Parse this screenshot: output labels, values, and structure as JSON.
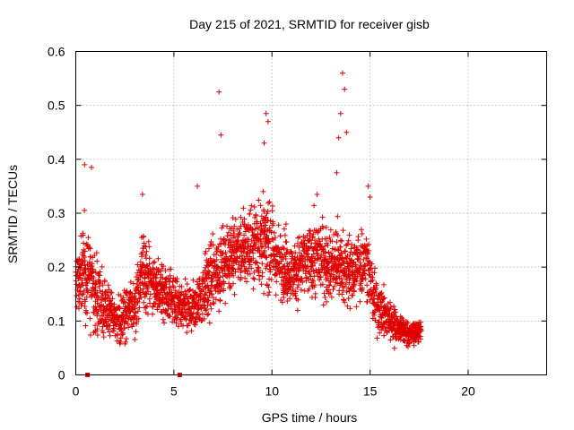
{
  "chart_data": {
    "type": "scatter",
    "title": "Day 215 of 2021, SRMTID for receiver gisb",
    "xlabel": "GPS time / hours",
    "ylabel": "SRMTID / TECUs",
    "xlim": [
      0,
      24
    ],
    "ylim": [
      0,
      0.6
    ],
    "xticks": [
      0,
      5,
      10,
      15,
      20
    ],
    "xtick_labels": [
      "0",
      "5",
      "10",
      "15",
      "20"
    ],
    "yticks": [
      0,
      0.1,
      0.2,
      0.3,
      0.4,
      0.5,
      0.6
    ],
    "ytick_labels": [
      "0",
      "0.1",
      "0.2",
      "0.3",
      "0.4",
      "0.5",
      "0.6"
    ],
    "grid": true,
    "marker": "plus",
    "series_color": "#e00000",
    "sample_interval_hours": 0.01,
    "zero_markers_x": [
      0.6,
      5.3
    ],
    "envelope": {
      "description": "scatter of SRMTID values, dense cloud from 0 to ~17.6 h",
      "x": [
        0,
        0.5,
        0.9,
        1.5,
        2.2,
        3.0,
        3.4,
        4.0,
        4.6,
        5.3,
        6.0,
        6.6,
        7.2,
        7.8,
        8.5,
        9.2,
        9.8,
        10.4,
        11.0,
        11.8,
        12.4,
        13.0,
        13.6,
        14.2,
        14.8,
        15.2,
        15.8,
        16.4,
        17.0,
        17.6
      ],
      "median": [
        0.17,
        0.2,
        0.16,
        0.12,
        0.1,
        0.13,
        0.19,
        0.17,
        0.15,
        0.13,
        0.12,
        0.16,
        0.19,
        0.22,
        0.23,
        0.25,
        0.24,
        0.21,
        0.19,
        0.21,
        0.22,
        0.2,
        0.2,
        0.19,
        0.22,
        0.14,
        0.11,
        0.09,
        0.075,
        0.085
      ],
      "spread": [
        0.05,
        0.09,
        0.07,
        0.04,
        0.04,
        0.05,
        0.07,
        0.05,
        0.05,
        0.04,
        0.05,
        0.06,
        0.07,
        0.06,
        0.06,
        0.07,
        0.07,
        0.06,
        0.05,
        0.06,
        0.07,
        0.06,
        0.07,
        0.06,
        0.06,
        0.05,
        0.04,
        0.03,
        0.02,
        0.02
      ]
    },
    "peaks": [
      {
        "x": 0.45,
        "y": 0.39
      },
      {
        "x": 0.8,
        "y": 0.385
      },
      {
        "x": 3.4,
        "y": 0.335
      },
      {
        "x": 6.2,
        "y": 0.35
      },
      {
        "x": 7.3,
        "y": 0.525
      },
      {
        "x": 7.4,
        "y": 0.445
      },
      {
        "x": 9.7,
        "y": 0.485
      },
      {
        "x": 9.8,
        "y": 0.47
      },
      {
        "x": 9.6,
        "y": 0.43
      },
      {
        "x": 12.3,
        "y": 0.335
      },
      {
        "x": 13.6,
        "y": 0.56
      },
      {
        "x": 13.7,
        "y": 0.53
      },
      {
        "x": 13.5,
        "y": 0.485
      },
      {
        "x": 13.4,
        "y": 0.44
      },
      {
        "x": 13.8,
        "y": 0.45
      },
      {
        "x": 13.3,
        "y": 0.375
      },
      {
        "x": 14.9,
        "y": 0.35
      },
      {
        "x": 15.0,
        "y": 0.33
      }
    ]
  }
}
